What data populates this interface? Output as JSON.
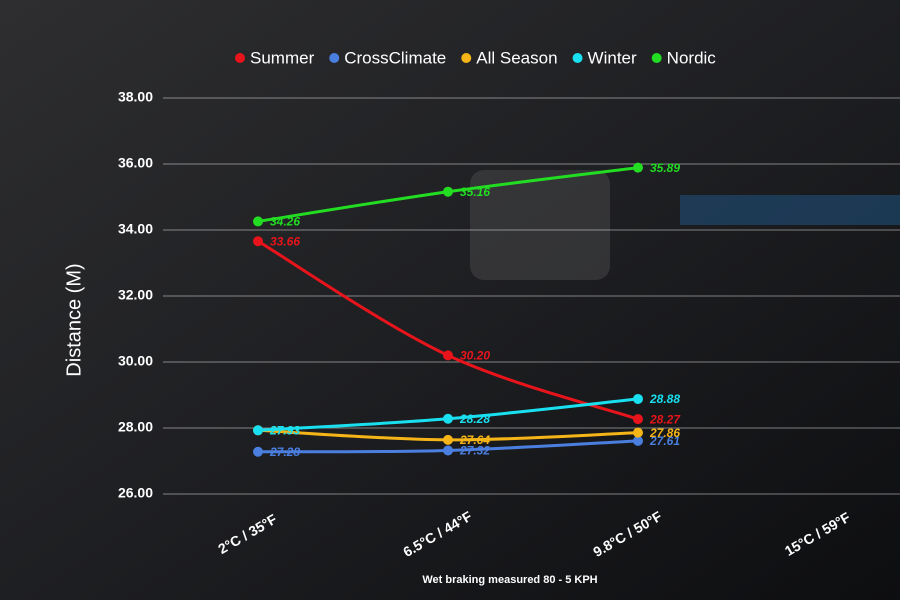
{
  "chart_data": {
    "type": "line",
    "x_label": "Distance (M)",
    "caption": "Wet braking measured 80 - 5 KPH",
    "categories": [
      "2°C / 35°F",
      "6.5°C / 44°F",
      "9.8°C / 50°F",
      "15°C / 59°F"
    ],
    "series": [
      {
        "name": "Summer",
        "color": "#e8141b",
        "values": [
          33.66,
          30.2,
          28.27,
          null
        ],
        "value_labels": [
          "33.66",
          "30.20",
          "28.27",
          null
        ]
      },
      {
        "name": "CrossClimate",
        "color": "#4a7fe0",
        "values": [
          27.28,
          27.32,
          27.61,
          null
        ],
        "value_labels": [
          "27.28",
          "27.32",
          "27.61",
          null
        ]
      },
      {
        "name": "All Season",
        "color": "#f5b417",
        "values": [
          27.93,
          27.64,
          27.86,
          null
        ],
        "value_labels": [
          "27.93",
          "27.64",
          "27.86",
          null
        ]
      },
      {
        "name": "Winter",
        "color": "#19e0f0",
        "values": [
          27.93,
          28.28,
          28.88,
          null
        ],
        "value_labels": [
          "27.93",
          "28.28",
          "28.88",
          null
        ]
      },
      {
        "name": "Nordic",
        "color": "#22dd22",
        "values": [
          34.26,
          35.16,
          35.89,
          null
        ],
        "value_labels": [
          "34.26",
          "35.16",
          "35.89",
          null
        ]
      }
    ],
    "ylim": [
      25.5,
      38.5
    ],
    "yticks": [
      {
        "value": 26,
        "label": "26.00"
      },
      {
        "value": 28,
        "label": "28.00"
      },
      {
        "value": 30,
        "label": "30.00"
      },
      {
        "value": 32,
        "label": "32.00"
      },
      {
        "value": 34,
        "label": "34.00"
      },
      {
        "value": 36,
        "label": "36.00"
      },
      {
        "value": 38,
        "label": "38.00"
      }
    ],
    "grid": true,
    "legend": "top"
  }
}
